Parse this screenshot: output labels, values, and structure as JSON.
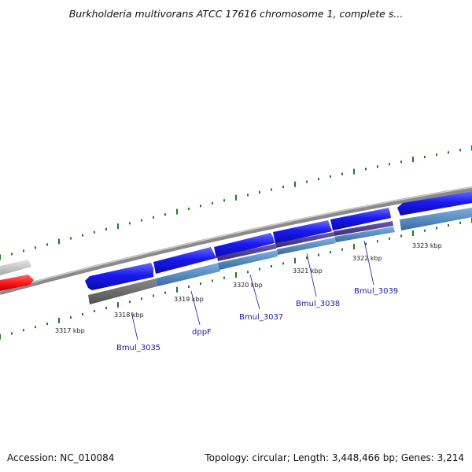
{
  "header": {
    "title": "Burkholderia multivorans ATCC 17616 chromosome 1, complete s..."
  },
  "footer": {
    "accession": "Accession: NC_010084",
    "summary": "Topology: circular; Length: 3,448,466 bp; Genes: 3,214"
  },
  "ticks": [
    "3317 kbp",
    "3318 kbp",
    "3319 kbp",
    "3320 kbp",
    "3321 kbp",
    "3322 kbp",
    "3323 kbp"
  ],
  "genes": [
    "Bmul_3035",
    "dppF",
    "Bmul_3037",
    "Bmul_3038",
    "Bmul_3039"
  ],
  "colors": {
    "background": "#ffffff",
    "backbone": "#8a8a8a",
    "tick": "#1e7a1e",
    "gene_forward": "#1a1af0",
    "cds_blue": "#4a86c0",
    "cds_purple": "#4b3a8c",
    "cds_gray": "#6e6e6e",
    "gene_red": "#ff1a1a",
    "gene_light": "#c8c8c8",
    "label_text": "#1a1aa6"
  }
}
